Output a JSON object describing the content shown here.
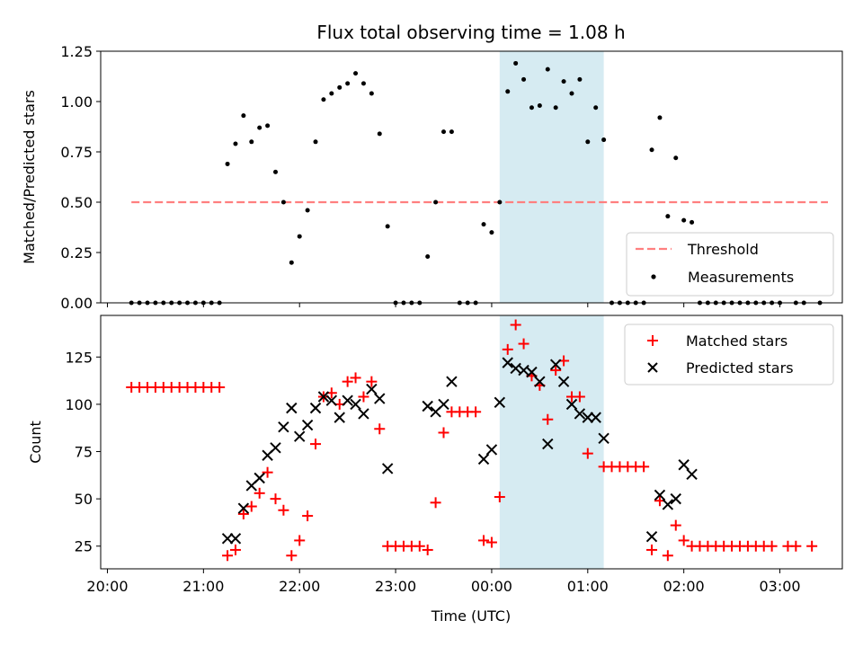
{
  "chart_data": [
    {
      "panel": "top",
      "type": "scatter",
      "title": "Flux total observing time = 1.08 h",
      "ylabel": "Matched/Predicted stars",
      "xlabel": "",
      "ylim": [
        0,
        1.25
      ],
      "yticks": [
        0.0,
        0.25,
        0.5,
        0.75,
        1.0,
        1.25
      ],
      "ytick_labels": [
        "0.00",
        "0.25",
        "0.50",
        "0.75",
        "1.00",
        "1.25"
      ],
      "xticks_hours": [
        20,
        21,
        22,
        23,
        24,
        25,
        26,
        27
      ],
      "xlim_hours": [
        19.93,
        27.65
      ],
      "legend": {
        "placement": "lower-right",
        "entries": [
          "Threshold",
          "Measurements"
        ]
      },
      "threshold": {
        "name": "Threshold",
        "value": 0.5,
        "x_start": "20:15",
        "x_end": "03:30",
        "color": "#ff7f7f"
      },
      "highlight": {
        "x_start": "00:05",
        "x_end": "01:10",
        "color": "#add8e6"
      },
      "series": [
        {
          "name": "Measurements",
          "color": "#000000",
          "points": [
            [
              "20:15",
              0
            ],
            [
              "20:20",
              0
            ],
            [
              "20:25",
              0
            ],
            [
              "20:30",
              0
            ],
            [
              "20:35",
              0
            ],
            [
              "20:40",
              0
            ],
            [
              "20:45",
              0
            ],
            [
              "20:50",
              0
            ],
            [
              "20:55",
              0
            ],
            [
              "21:00",
              0
            ],
            [
              "21:05",
              0
            ],
            [
              "21:10",
              0
            ],
            [
              "21:15",
              0.69
            ],
            [
              "21:20",
              0.79
            ],
            [
              "21:25",
              0.93
            ],
            [
              "21:30",
              0.8
            ],
            [
              "21:35",
              0.87
            ],
            [
              "21:40",
              0.88
            ],
            [
              "21:45",
              0.65
            ],
            [
              "21:50",
              0.5
            ],
            [
              "21:55",
              0.2
            ],
            [
              "22:00",
              0.33
            ],
            [
              "22:05",
              0.46
            ],
            [
              "22:10",
              0.8
            ],
            [
              "22:15",
              1.01
            ],
            [
              "22:20",
              1.04
            ],
            [
              "22:25",
              1.07
            ],
            [
              "22:30",
              1.09
            ],
            [
              "22:35",
              1.14
            ],
            [
              "22:40",
              1.09
            ],
            [
              "22:45",
              1.04
            ],
            [
              "22:50",
              0.84
            ],
            [
              "22:55",
              0.38
            ],
            [
              "23:00",
              0
            ],
            [
              "23:05",
              0
            ],
            [
              "23:10",
              0
            ],
            [
              "23:15",
              0
            ],
            [
              "23:20",
              0.23
            ],
            [
              "23:25",
              0.5
            ],
            [
              "23:30",
              0.85
            ],
            [
              "23:35",
              0.85
            ],
            [
              "23:40",
              0
            ],
            [
              "23:45",
              0
            ],
            [
              "23:50",
              0
            ],
            [
              "23:55",
              0.39
            ],
            [
              "00:00",
              0.35
            ],
            [
              "00:05",
              0.5
            ],
            [
              "00:10",
              1.05
            ],
            [
              "00:15",
              1.19
            ],
            [
              "00:20",
              1.11
            ],
            [
              "00:25",
              0.97
            ],
            [
              "00:30",
              0.98
            ],
            [
              "00:35",
              1.16
            ],
            [
              "00:40",
              0.97
            ],
            [
              "00:45",
              1.1
            ],
            [
              "00:50",
              1.04
            ],
            [
              "00:55",
              1.11
            ],
            [
              "01:00",
              0.8
            ],
            [
              "01:05",
              0.97
            ],
            [
              "01:10",
              0.81
            ],
            [
              "01:15",
              0
            ],
            [
              "01:20",
              0
            ],
            [
              "01:25",
              0
            ],
            [
              "01:30",
              0
            ],
            [
              "01:35",
              0
            ],
            [
              "01:40",
              0.76
            ],
            [
              "01:45",
              0.92
            ],
            [
              "01:50",
              0.43
            ],
            [
              "01:55",
              0.72
            ],
            [
              "02:00",
              0.41
            ],
            [
              "02:05",
              0.4
            ],
            [
              "02:10",
              0
            ],
            [
              "02:15",
              0
            ],
            [
              "02:20",
              0
            ],
            [
              "02:25",
              0
            ],
            [
              "02:30",
              0
            ],
            [
              "02:35",
              0
            ],
            [
              "02:40",
              0
            ],
            [
              "02:45",
              0
            ],
            [
              "02:50",
              0
            ],
            [
              "02:55",
              0
            ],
            [
              "03:00",
              0
            ],
            [
              "03:10",
              0
            ],
            [
              "03:15",
              0
            ],
            [
              "03:25",
              0
            ]
          ]
        }
      ]
    },
    {
      "panel": "bottom",
      "type": "scatter",
      "title": "",
      "ylabel": "Count",
      "xlabel": "Time (UTC)",
      "ylim": [
        13,
        147
      ],
      "yticks": [
        25,
        50,
        75,
        100,
        125
      ],
      "ytick_labels": [
        "25",
        "50",
        "75",
        "100",
        "125"
      ],
      "xticks_hours": [
        20,
        21,
        22,
        23,
        24,
        25,
        26,
        27
      ],
      "xtick_labels": [
        "20:00",
        "21:00",
        "22:00",
        "23:00",
        "00:00",
        "01:00",
        "02:00",
        "03:00"
      ],
      "xlim_hours": [
        19.93,
        27.65
      ],
      "legend": {
        "placement": "upper-right",
        "entries": [
          "Matched stars",
          "Predicted stars"
        ]
      },
      "highlight": {
        "x_start": "00:05",
        "x_end": "01:10",
        "color": "#add8e6"
      },
      "series": [
        {
          "name": "Matched stars",
          "marker": "+",
          "color": "#ff0000",
          "points": [
            [
              "20:15",
              109
            ],
            [
              "20:20",
              109
            ],
            [
              "20:25",
              109
            ],
            [
              "20:30",
              109
            ],
            [
              "20:35",
              109
            ],
            [
              "20:40",
              109
            ],
            [
              "20:45",
              109
            ],
            [
              "20:50",
              109
            ],
            [
              "20:55",
              109
            ],
            [
              "21:00",
              109
            ],
            [
              "21:05",
              109
            ],
            [
              "21:10",
              109
            ],
            [
              "21:15",
              20
            ],
            [
              "21:20",
              23
            ],
            [
              "21:25",
              42
            ],
            [
              "21:30",
              46
            ],
            [
              "21:35",
              53
            ],
            [
              "21:40",
              64
            ],
            [
              "21:45",
              50
            ],
            [
              "21:50",
              44
            ],
            [
              "21:55",
              20
            ],
            [
              "22:00",
              28
            ],
            [
              "22:05",
              41
            ],
            [
              "22:10",
              79
            ],
            [
              "22:15",
              104
            ],
            [
              "22:20",
              106
            ],
            [
              "22:25",
              100
            ],
            [
              "22:30",
              112
            ],
            [
              "22:35",
              114
            ],
            [
              "22:40",
              104
            ],
            [
              "22:45",
              112
            ],
            [
              "22:50",
              87
            ],
            [
              "22:55",
              25
            ],
            [
              "23:00",
              25
            ],
            [
              "23:05",
              25
            ],
            [
              "23:10",
              25
            ],
            [
              "23:15",
              25
            ],
            [
              "23:20",
              23
            ],
            [
              "23:25",
              48
            ],
            [
              "23:30",
              85
            ],
            [
              "23:35",
              96
            ],
            [
              "23:40",
              96
            ],
            [
              "23:45",
              96
            ],
            [
              "23:50",
              96
            ],
            [
              "23:55",
              28
            ],
            [
              "00:00",
              27
            ],
            [
              "00:05",
              51
            ],
            [
              "00:10",
              129
            ],
            [
              "00:15",
              142
            ],
            [
              "00:20",
              132
            ],
            [
              "00:25",
              115
            ],
            [
              "00:30",
              110
            ],
            [
              "00:35",
              92
            ],
            [
              "00:40",
              118
            ],
            [
              "00:45",
              123
            ],
            [
              "00:50",
              104
            ],
            [
              "00:55",
              104
            ],
            [
              "01:00",
              74
            ],
            [
              "01:10",
              67
            ],
            [
              "01:15",
              67
            ],
            [
              "01:20",
              67
            ],
            [
              "01:25",
              67
            ],
            [
              "01:30",
              67
            ],
            [
              "01:35",
              67
            ],
            [
              "01:40",
              23
            ],
            [
              "01:45",
              49
            ],
            [
              "01:50",
              20
            ],
            [
              "01:55",
              36
            ],
            [
              "02:00",
              28
            ],
            [
              "02:05",
              25
            ],
            [
              "02:10",
              25
            ],
            [
              "02:15",
              25
            ],
            [
              "02:20",
              25
            ],
            [
              "02:25",
              25
            ],
            [
              "02:30",
              25
            ],
            [
              "02:35",
              25
            ],
            [
              "02:40",
              25
            ],
            [
              "02:45",
              25
            ],
            [
              "02:50",
              25
            ],
            [
              "02:55",
              25
            ],
            [
              "03:05",
              25
            ],
            [
              "03:10",
              25
            ],
            [
              "03:20",
              25
            ]
          ]
        },
        {
          "name": "Predicted stars",
          "marker": "x",
          "color": "#000000",
          "points": [
            [
              "21:15",
              29
            ],
            [
              "21:20",
              29
            ],
            [
              "21:25",
              45
            ],
            [
              "21:30",
              57
            ],
            [
              "21:35",
              61
            ],
            [
              "21:40",
              73
            ],
            [
              "21:45",
              77
            ],
            [
              "21:50",
              88
            ],
            [
              "21:55",
              98
            ],
            [
              "22:00",
              83
            ],
            [
              "22:05",
              89
            ],
            [
              "22:10",
              98
            ],
            [
              "22:15",
              104
            ],
            [
              "22:20",
              102
            ],
            [
              "22:25",
              93
            ],
            [
              "22:30",
              102
            ],
            [
              "22:35",
              100
            ],
            [
              "22:40",
              95
            ],
            [
              "22:45",
              108
            ],
            [
              "22:50",
              103
            ],
            [
              "22:55",
              66
            ],
            [
              "23:20",
              99
            ],
            [
              "23:25",
              96
            ],
            [
              "23:30",
              100
            ],
            [
              "23:35",
              112
            ],
            [
              "23:55",
              71
            ],
            [
              "00:00",
              76
            ],
            [
              "00:05",
              101
            ],
            [
              "00:10",
              122
            ],
            [
              "00:15",
              119
            ],
            [
              "00:20",
              118
            ],
            [
              "00:25",
              117
            ],
            [
              "00:30",
              112
            ],
            [
              "00:35",
              79
            ],
            [
              "00:40",
              121
            ],
            [
              "00:45",
              112
            ],
            [
              "00:50",
              100
            ],
            [
              "00:55",
              95
            ],
            [
              "01:00",
              93
            ],
            [
              "01:05",
              93
            ],
            [
              "01:10",
              82
            ],
            [
              "01:40",
              30
            ],
            [
              "01:45",
              52
            ],
            [
              "01:50",
              47
            ],
            [
              "01:55",
              50
            ],
            [
              "02:00",
              68
            ],
            [
              "02:05",
              63
            ]
          ]
        }
      ]
    }
  ]
}
